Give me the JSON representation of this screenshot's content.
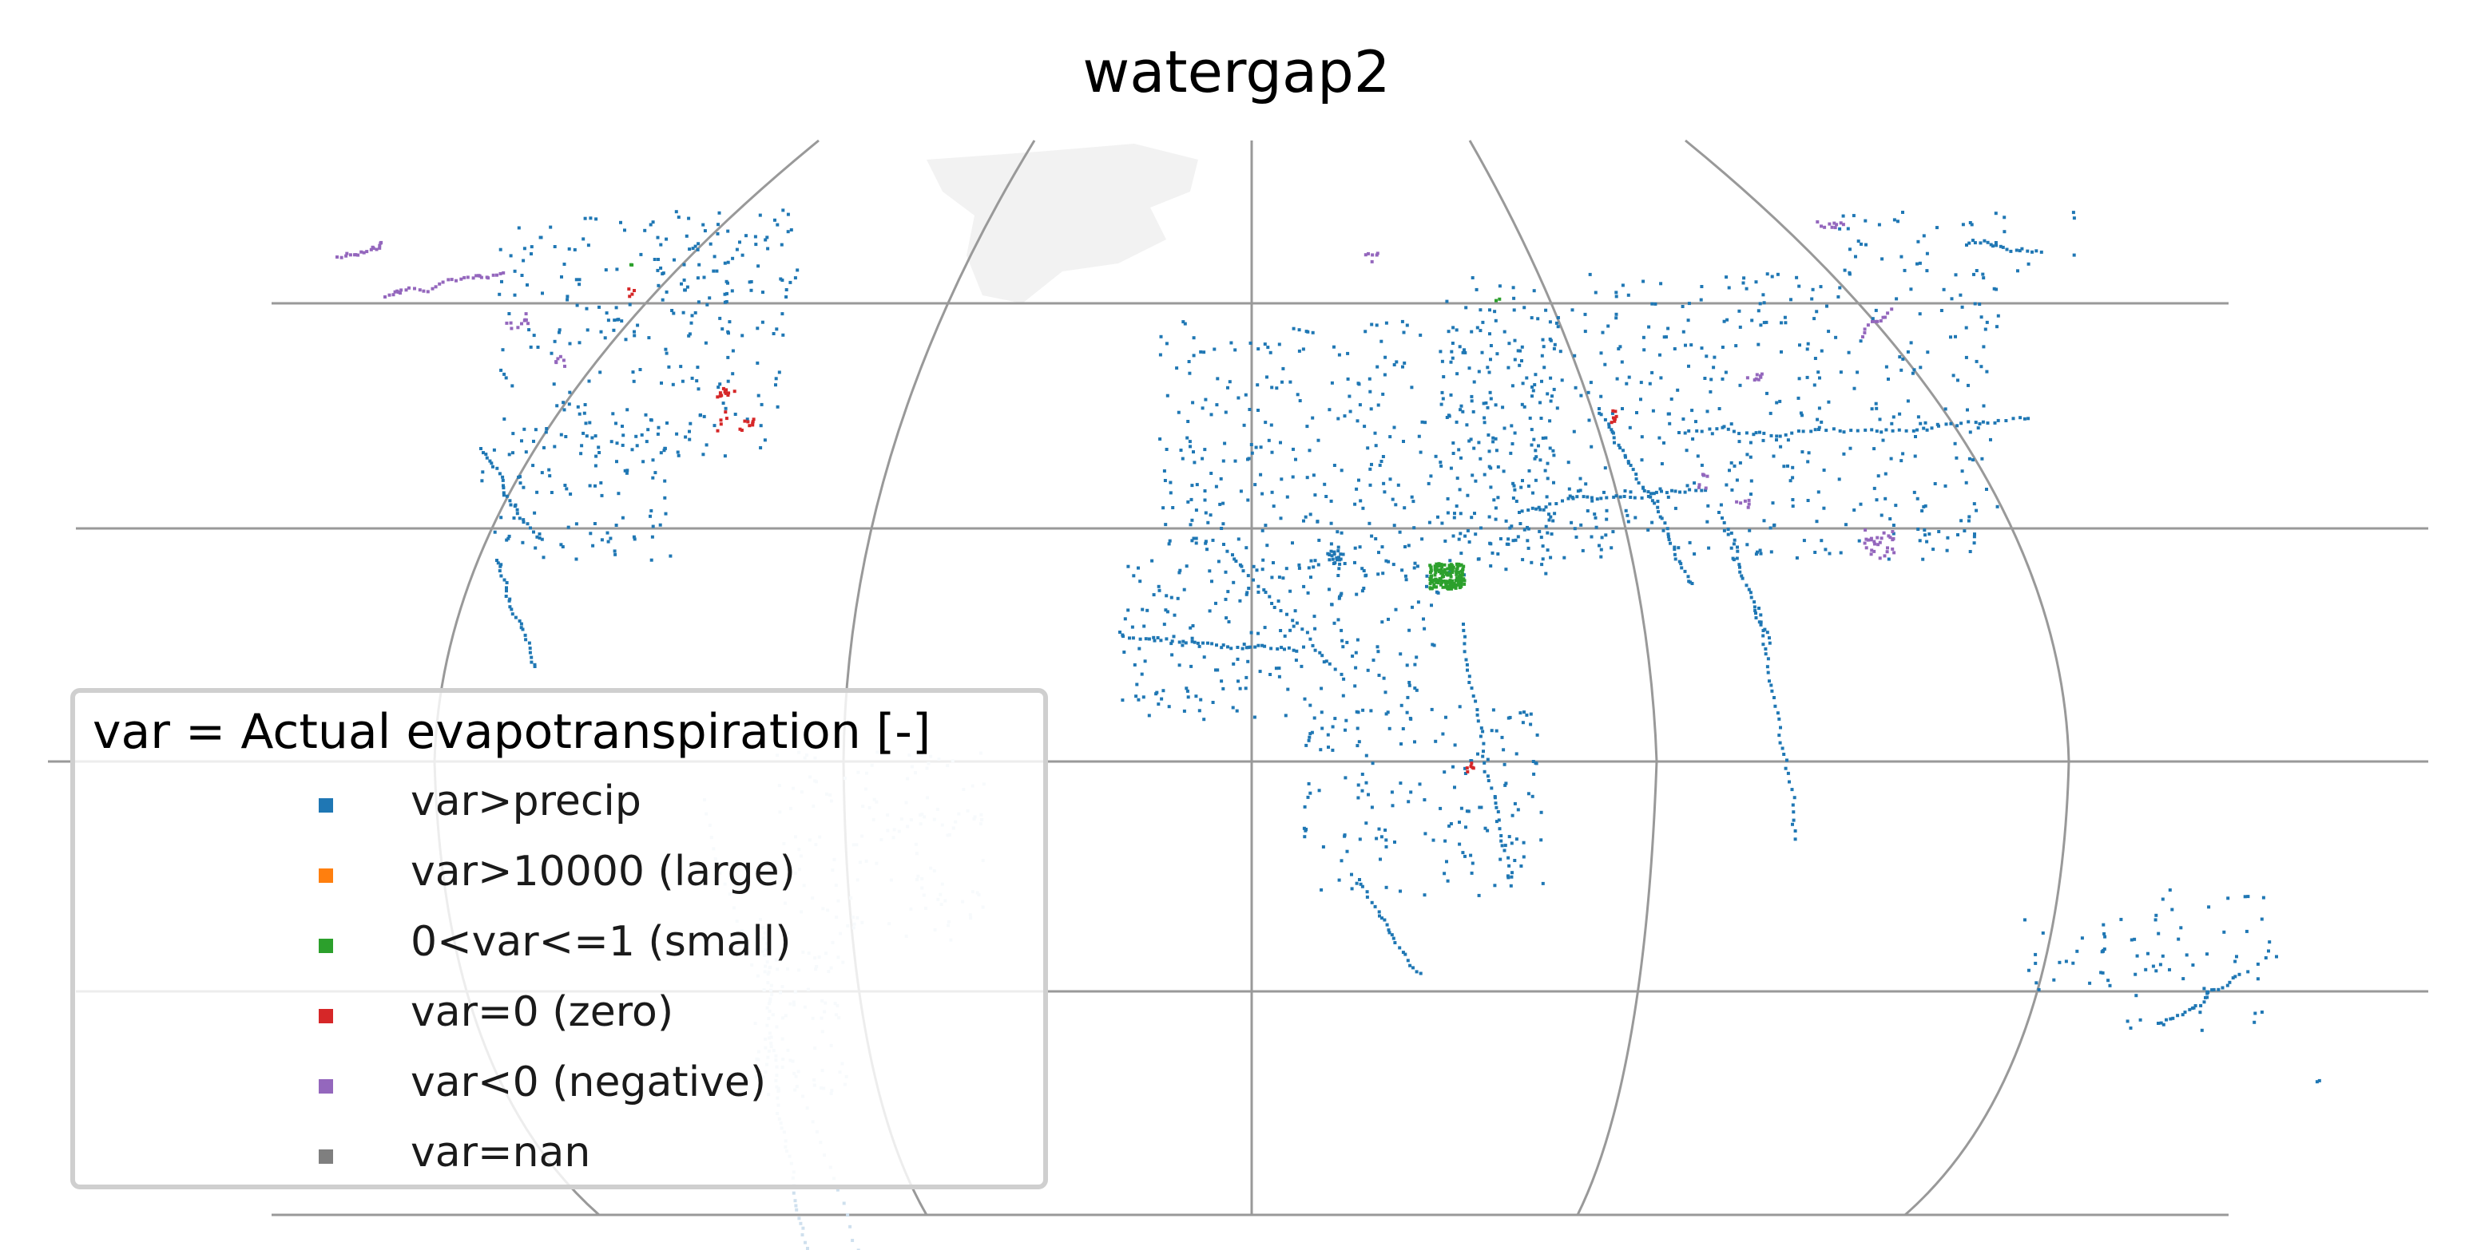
{
  "title": "watergap2",
  "legend": {
    "title": "var = Actual evapotranspiration [-]",
    "items": [
      {
        "label": "var>precip",
        "color": "#1f77b4"
      },
      {
        "label": "var>10000 (large)",
        "color": "#ff7f0e"
      },
      {
        "label": "0<var<=1 (small)",
        "color": "#2ca02c"
      },
      {
        "label": "var=0 (zero)",
        "color": "#d62728"
      },
      {
        "label": "var<0 (negative)",
        "color": "#9467bd"
      },
      {
        "label": "var=nan",
        "color": "#7f7f7f"
      }
    ]
  },
  "colors": {
    "gridlines": "#999999",
    "land_background": "#f2f2f2",
    "faded_points": "#cfe0ee"
  },
  "map": {
    "projection": "Robinson-style pseudo-cylindrical (cropped)",
    "gridlines": true
  }
}
